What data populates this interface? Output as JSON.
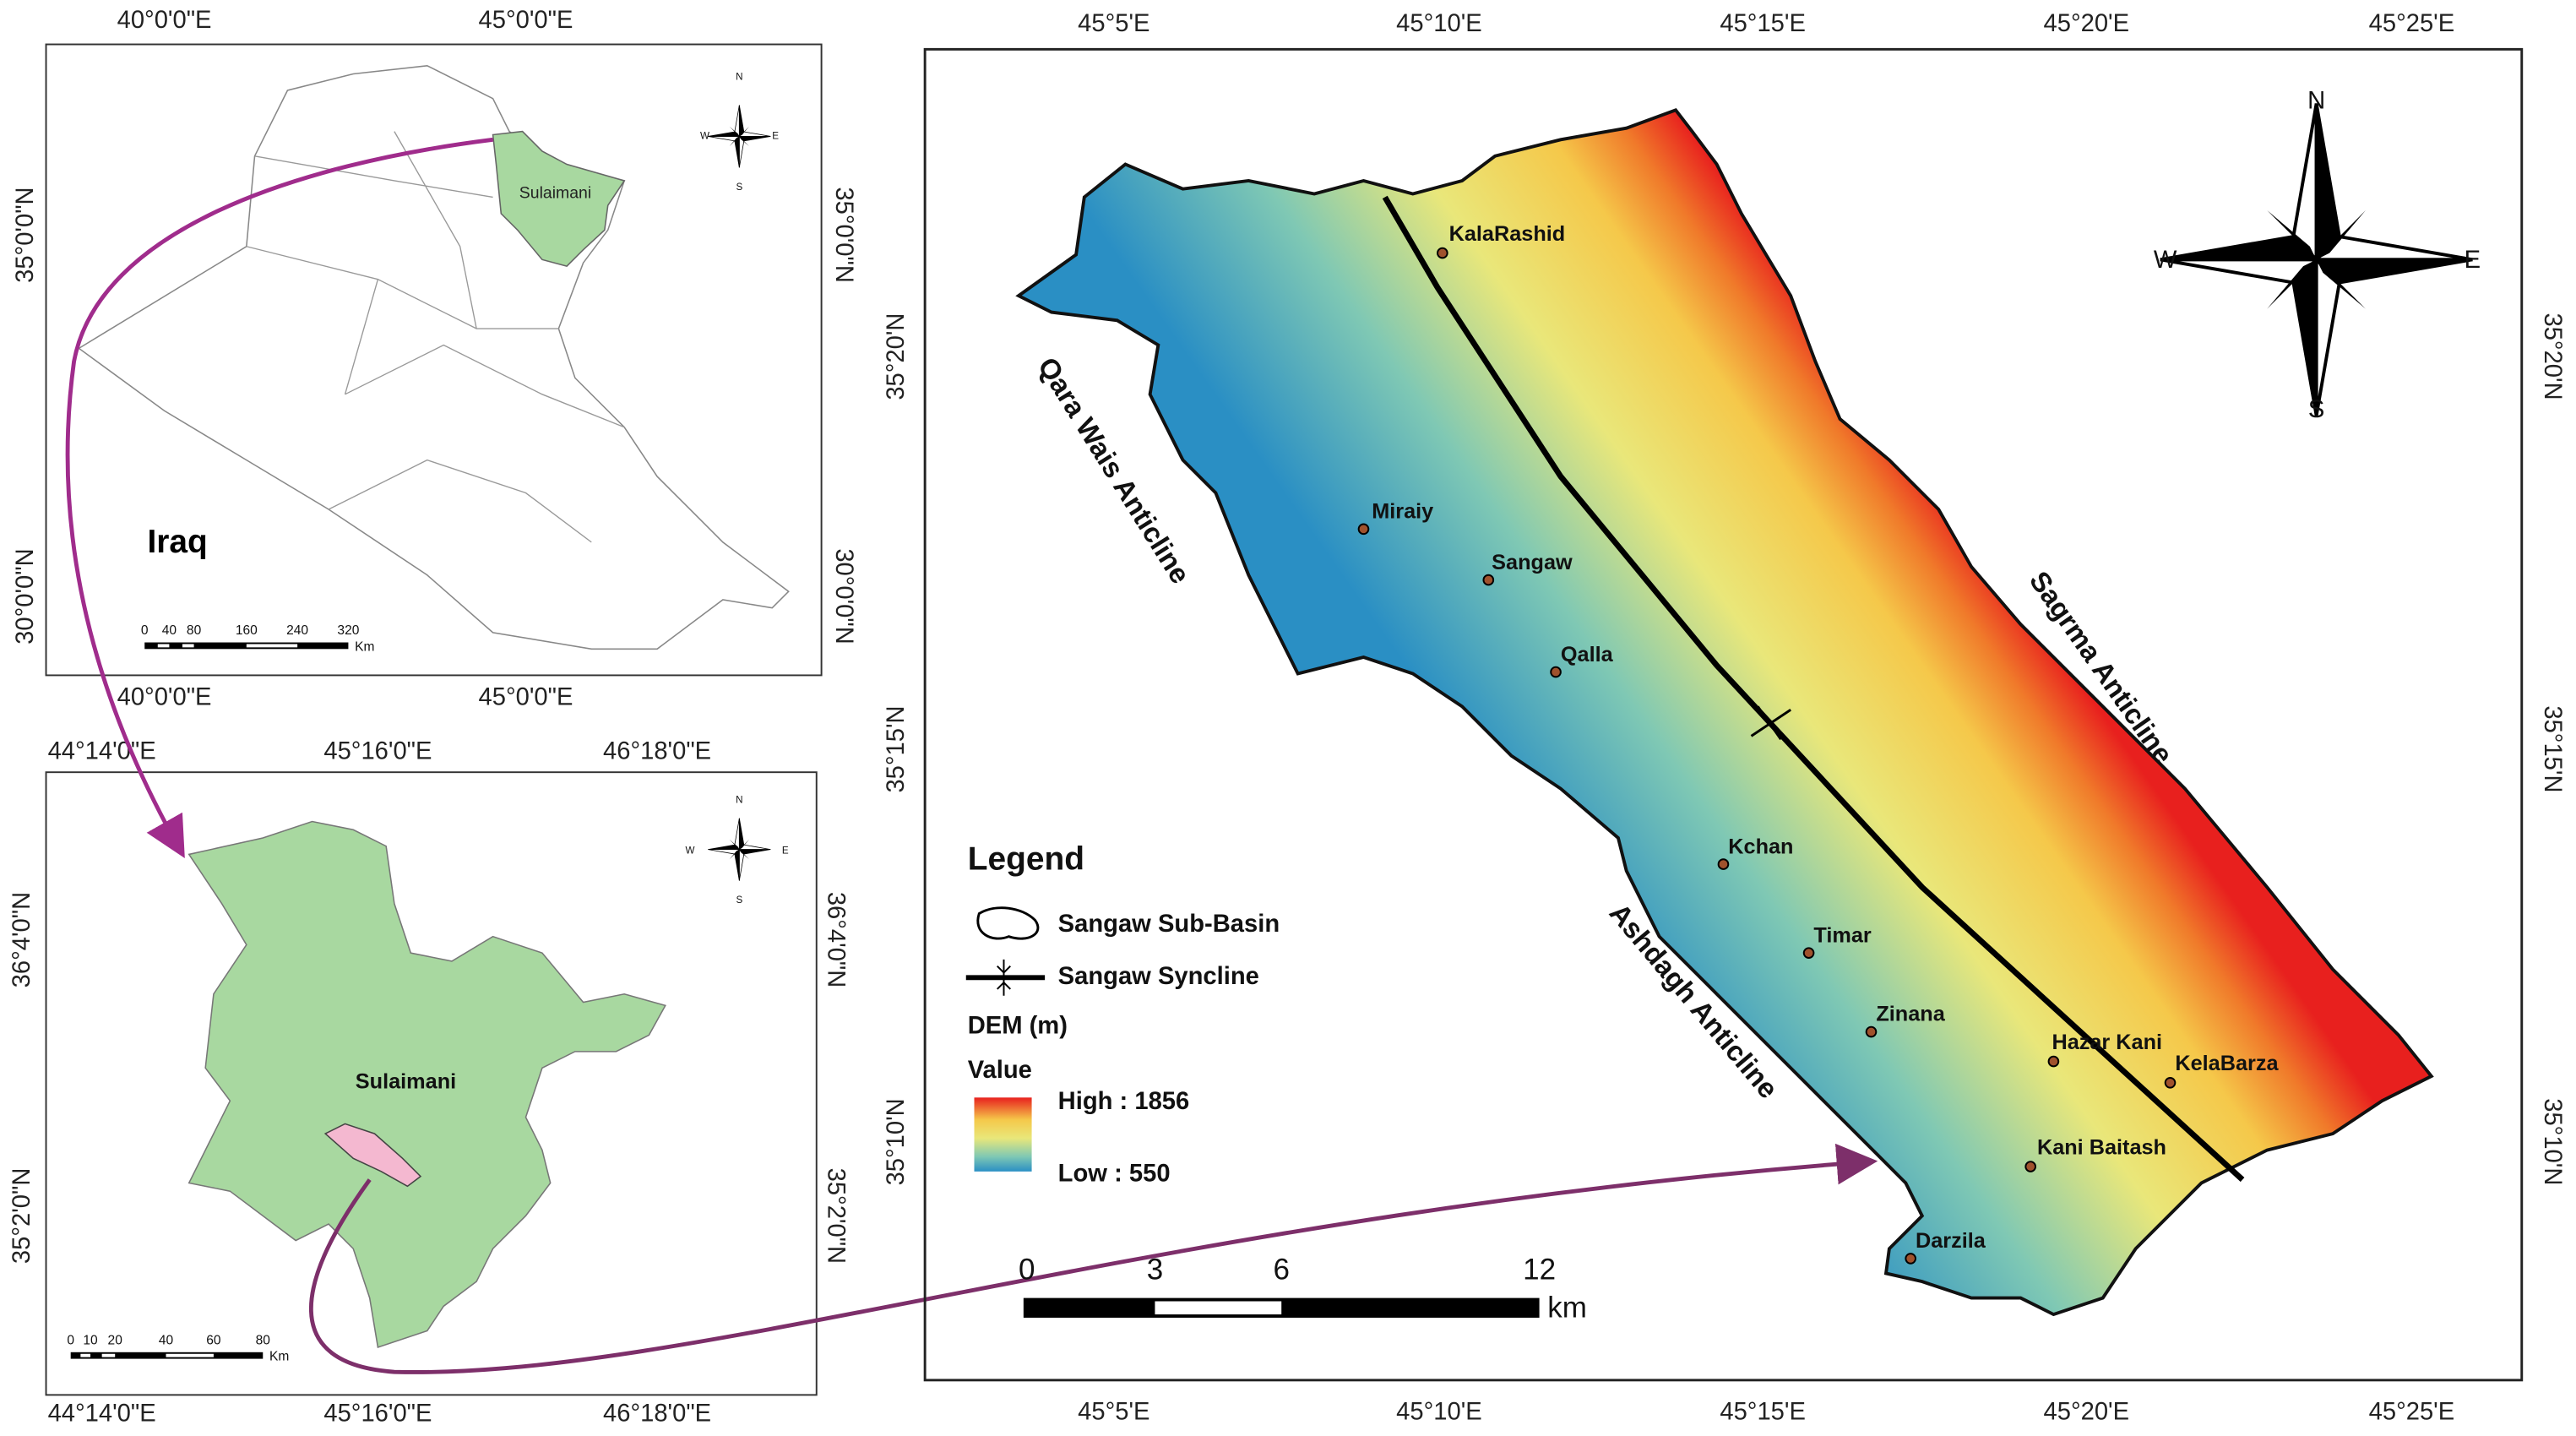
{
  "iraq_map": {
    "top_ticks": [
      "40°0'0\"E",
      "45°0'0\"E"
    ],
    "side_ticks": [
      "35°0'0\"N",
      "30°0'0\"N"
    ],
    "country": "Iraq",
    "province": "Sulaimani",
    "scale_labels": [
      0,
      40,
      80,
      160,
      240,
      320
    ],
    "scale_unit": "Km",
    "compass": {
      "n": "N",
      "e": "E",
      "s": "S",
      "w": "W"
    }
  },
  "sulaimani_map": {
    "top_ticks": [
      "44°14'0\"E",
      "45°16'0\"E",
      "46°18'0\"E"
    ],
    "side_ticks": [
      "36°4'0\"N",
      "35°2'0\"N"
    ],
    "province": "Sulaimani",
    "scale_labels": [
      0,
      10,
      20,
      40,
      60,
      80
    ],
    "scale_unit": "Km",
    "compass": {
      "n": "N",
      "e": "E",
      "s": "S",
      "w": "W"
    }
  },
  "main_map": {
    "x_ticks": [
      "45°5'E",
      "45°10'E",
      "45°15'E",
      "45°20'E",
      "45°25'E"
    ],
    "y_ticks": [
      "35°20'N",
      "35°15'N",
      "35°10'N"
    ],
    "compass": {
      "n": "N",
      "e": "E",
      "s": "S",
      "w": "W"
    },
    "places": [
      "KalaRashid",
      "Miraiy",
      "Sangaw",
      "Qalla",
      "Kchan",
      "Timar",
      "Zinana",
      "Hazar Kani",
      "KelaBarza",
      "Kani Baitash",
      "Darzila"
    ],
    "structures": [
      "Qara Wais Anticline",
      "Sagrma Anticline",
      "Ashdagh Anticline"
    ],
    "legend": {
      "title": "Legend",
      "basin": "Sangaw Sub-Basin",
      "syncline": "Sangaw Syncline",
      "dem": "DEM (m)",
      "value": "Value",
      "high": "High : 1856",
      "low": "Low : 550"
    },
    "scale_labels": [
      0,
      3,
      6,
      12
    ],
    "scale_unit": "km"
  }
}
